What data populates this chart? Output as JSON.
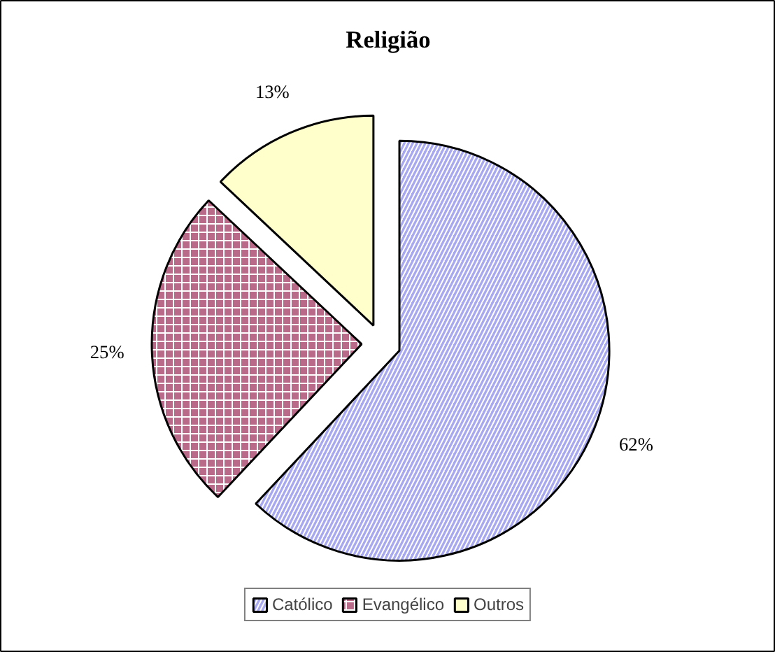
{
  "chart_data": {
    "type": "pie",
    "title": "Religião",
    "categories": [
      "Católico",
      "Evangélico",
      "Outros"
    ],
    "values": [
      62,
      25,
      13
    ],
    "colors": [
      "#a8a8f0",
      "#b86a88",
      "#ffffcc"
    ],
    "value_labels": [
      "62%",
      "25%",
      "13%"
    ],
    "legend": "bottom"
  }
}
